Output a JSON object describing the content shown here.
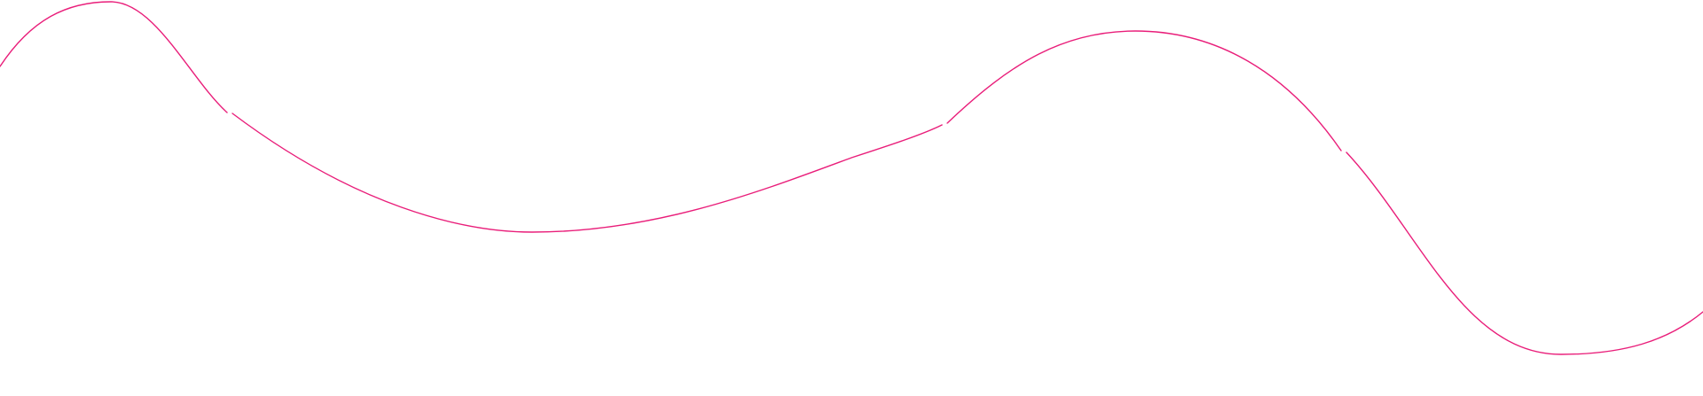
{
  "decoration": {
    "type": "wavy-line",
    "stroke_color": "#e91e7a",
    "background_color": "#ffffff",
    "segment_count": 4
  }
}
